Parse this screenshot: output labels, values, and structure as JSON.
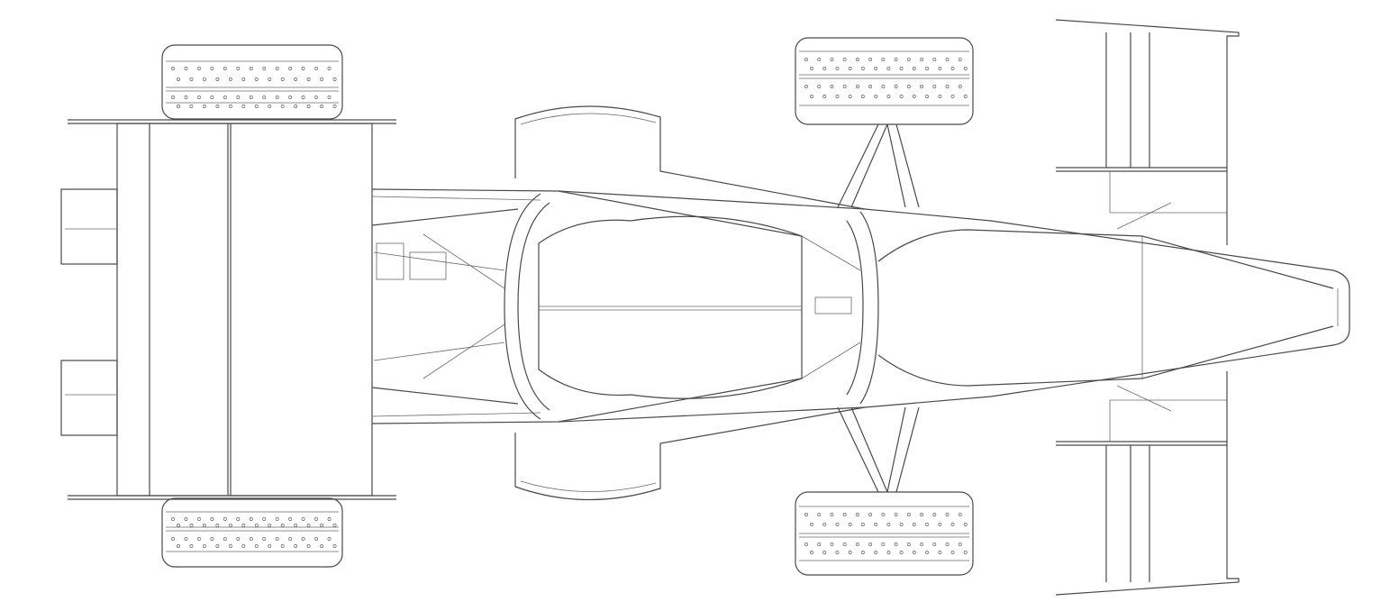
{
  "image": {
    "subject": "race-car-chassis-line-drawing",
    "background_color": "#ffffff",
    "stroke_color": "#4a4a4a"
  },
  "parts": {
    "rear_wing": "wing-icon",
    "front_wing": "wing-icon",
    "rear_tyres": "tyre-icon",
    "front_tyres": "tyre-icon",
    "sidepods": "sidepod-icon",
    "spaceframe": "frame-icon",
    "nose_cone": "nose-icon",
    "suspension": "wishbone-icon"
  }
}
